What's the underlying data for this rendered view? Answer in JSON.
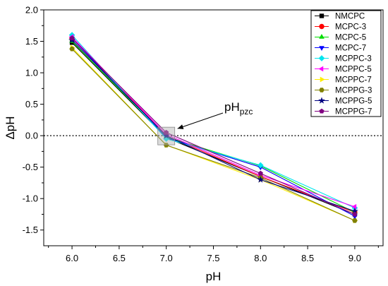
{
  "chart_data": {
    "type": "line",
    "xlabel": "pH",
    "ylabel": "ΔpH",
    "xlim": [
      5.7,
      9.3
    ],
    "ylim": [
      -1.75,
      2.0
    ],
    "x_ticks": [
      "6.0",
      "6.5",
      "7.0",
      "7.5",
      "8.0",
      "8.5",
      "9.0"
    ],
    "y_ticks": [
      "2.0",
      "1.5",
      "1.0",
      "0.5",
      "0.0",
      "-0.5",
      "-1.0",
      "-1.5"
    ],
    "x_tick_values": [
      6.0,
      6.5,
      7.0,
      7.5,
      8.0,
      8.5,
      9.0
    ],
    "y_tick_values": [
      2.0,
      1.5,
      1.0,
      0.5,
      0.0,
      -0.5,
      -1.0,
      -1.5
    ],
    "reference_line": {
      "y": 0.0,
      "style": "dotted"
    },
    "legend_position": "top-right",
    "annotation": {
      "text": "pH",
      "subscript": "pzc",
      "target_x": 7.0,
      "target_y": 0.0
    },
    "x": [
      6.0,
      7.0,
      8.0,
      9.0
    ],
    "series": [
      {
        "name": "NMCPC",
        "color": "#000000",
        "marker": "square",
        "values": [
          1.48,
          -0.03,
          -0.65,
          -1.25
        ]
      },
      {
        "name": "MCPC-3",
        "color": "#ff0000",
        "marker": "circle",
        "values": [
          1.55,
          0.0,
          -0.65,
          -1.22
        ]
      },
      {
        "name": "MCPC-5",
        "color": "#00dd00",
        "marker": "triangle-up",
        "values": [
          1.5,
          -0.02,
          -0.48,
          -1.22
        ]
      },
      {
        "name": "MCPC-7",
        "color": "#0000ff",
        "marker": "triangle-down",
        "values": [
          1.55,
          -0.03,
          -0.5,
          -1.28
        ]
      },
      {
        "name": "MCPPC-3",
        "color": "#00e5ee",
        "marker": "diamond",
        "values": [
          1.6,
          -0.05,
          -0.47,
          -1.15
        ]
      },
      {
        "name": "MCPPC-5",
        "color": "#ff00ff",
        "marker": "triangle-left",
        "values": [
          1.57,
          0.02,
          -0.63,
          -1.13
        ]
      },
      {
        "name": "MCPPC-7",
        "color": "#ffee00",
        "marker": "triangle-right",
        "values": [
          1.4,
          -0.15,
          -0.7,
          -1.35
        ]
      },
      {
        "name": "MCPPG-3",
        "color": "#808000",
        "marker": "hexagon",
        "values": [
          1.38,
          -0.15,
          -0.67,
          -1.35
        ]
      },
      {
        "name": "MCPPG-5",
        "color": "#000080",
        "marker": "star",
        "values": [
          1.52,
          0.0,
          -0.7,
          -1.2
        ]
      },
      {
        "name": "MCPPG-7",
        "color": "#800080",
        "marker": "pentagon",
        "values": [
          1.55,
          0.05,
          -0.6,
          -1.25
        ]
      }
    ]
  }
}
